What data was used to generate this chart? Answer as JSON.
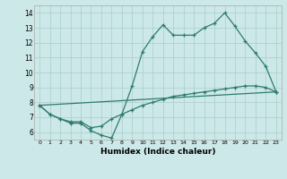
{
  "xlabel": "Humidex (Indice chaleur)",
  "ylabel": "",
  "background_color": "#cce8e8",
  "line_color": "#2e7b6e",
  "xlim": [
    -0.5,
    23.5
  ],
  "ylim": [
    5.5,
    14.5
  ],
  "yticks": [
    6,
    7,
    8,
    9,
    10,
    11,
    12,
    13,
    14
  ],
  "xticks": [
    0,
    1,
    2,
    3,
    4,
    5,
    6,
    7,
    8,
    9,
    10,
    11,
    12,
    13,
    14,
    15,
    16,
    17,
    18,
    19,
    20,
    21,
    22,
    23
  ],
  "series1_x": [
    0,
    1,
    2,
    3,
    4,
    5,
    6,
    7,
    8,
    9,
    10,
    11,
    12,
    13,
    14,
    15,
    16,
    17,
    18,
    19,
    20,
    21,
    22,
    23
  ],
  "series1_y": [
    7.8,
    7.2,
    6.9,
    6.6,
    6.6,
    6.1,
    5.8,
    5.6,
    7.2,
    9.1,
    11.4,
    12.4,
    13.2,
    12.5,
    12.5,
    12.5,
    13.0,
    13.3,
    14.0,
    13.1,
    12.1,
    11.3,
    10.4,
    8.7
  ],
  "series2_x": [
    0,
    1,
    2,
    3,
    4,
    5,
    6,
    7,
    8,
    9,
    10,
    11,
    12,
    13,
    14,
    15,
    16,
    17,
    18,
    19,
    20,
    21,
    22,
    23
  ],
  "series2_y": [
    7.8,
    7.2,
    6.9,
    6.7,
    6.7,
    6.3,
    6.4,
    6.9,
    7.2,
    7.5,
    7.8,
    8.0,
    8.2,
    8.4,
    8.5,
    8.6,
    8.7,
    8.8,
    8.9,
    9.0,
    9.1,
    9.1,
    9.0,
    8.7
  ],
  "series3_x": [
    0,
    23
  ],
  "series3_y": [
    7.8,
    8.7
  ]
}
